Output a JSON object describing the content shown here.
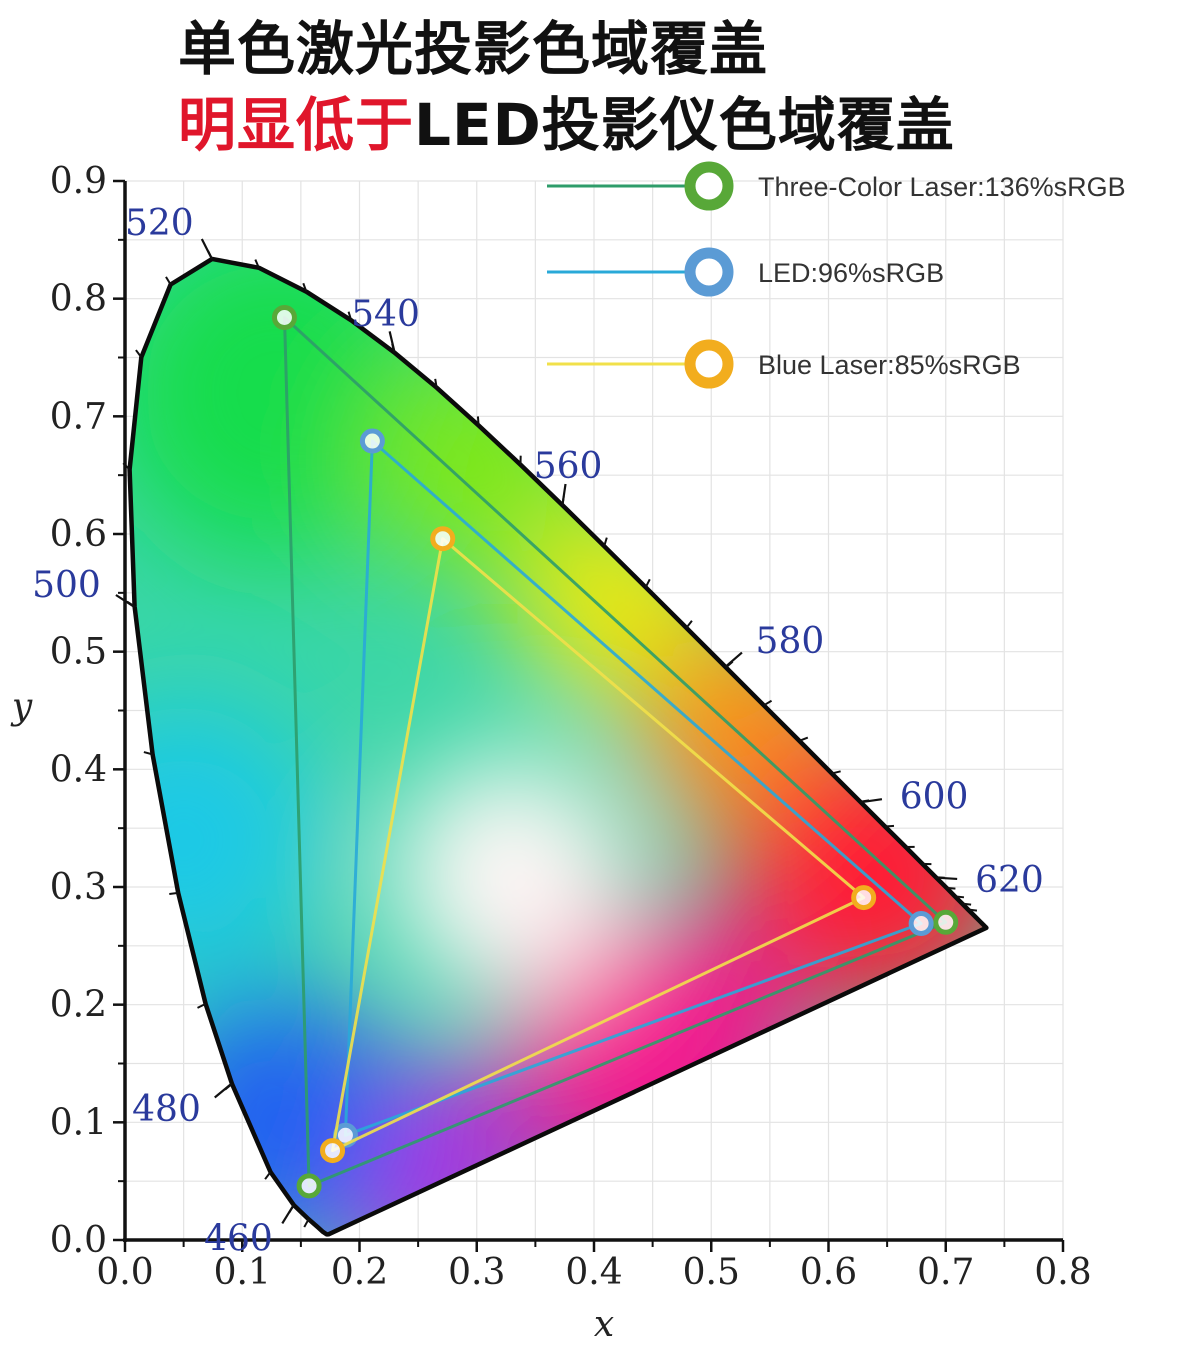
{
  "title": {
    "line1": "单色激光投影色域覆盖",
    "line2_red": "明显低于",
    "line2_rest": "LED投影仪色域覆盖"
  },
  "chart_data": {
    "type": "scatter",
    "subtype": "CIE 1931 chromaticity diagram with gamut triangles",
    "xlabel": "x",
    "ylabel": "y",
    "xlim": [
      0.0,
      0.8
    ],
    "ylim": [
      0.0,
      0.9
    ],
    "x_ticks": [
      "0.0",
      "0.1",
      "0.2",
      "0.3",
      "0.4",
      "0.5",
      "0.6",
      "0.7",
      "0.8"
    ],
    "y_ticks": [
      "0.0",
      "0.1",
      "0.2",
      "0.3",
      "0.4",
      "0.5",
      "0.6",
      "0.7",
      "0.8",
      "0.9"
    ],
    "grid": true,
    "legend_position": "top-right",
    "wavelength_labels": [
      {
        "text": "460",
        "x": 0.144,
        "y": 0.03
      },
      {
        "text": "480",
        "x": 0.091,
        "y": 0.133
      },
      {
        "text": "500",
        "x": 0.008,
        "y": 0.538
      },
      {
        "text": "520",
        "x": 0.074,
        "y": 0.834
      },
      {
        "text": "540",
        "x": 0.23,
        "y": 0.754
      },
      {
        "text": "560",
        "x": 0.373,
        "y": 0.624
      },
      {
        "text": "580",
        "x": 0.512,
        "y": 0.487
      },
      {
        "text": "600",
        "x": 0.627,
        "y": 0.372
      },
      {
        "text": "620",
        "x": 0.691,
        "y": 0.308
      }
    ],
    "spectral_locus": [
      [
        0.1741,
        0.005
      ],
      [
        0.1738,
        0.0049
      ],
      [
        0.1736,
        0.0049
      ],
      [
        0.1729,
        0.0048
      ],
      [
        0.172,
        0.0048
      ],
      [
        0.1689,
        0.0069
      ],
      [
        0.1644,
        0.0109
      ],
      [
        0.1566,
        0.0177
      ],
      [
        0.144,
        0.0297
      ],
      [
        0.1241,
        0.0578
      ],
      [
        0.0913,
        0.1327
      ],
      [
        0.0687,
        0.2007
      ],
      [
        0.0454,
        0.295
      ],
      [
        0.0235,
        0.4127
      ],
      [
        0.0082,
        0.5384
      ],
      [
        0.0039,
        0.6548
      ],
      [
        0.0139,
        0.7502
      ],
      [
        0.0389,
        0.812
      ],
      [
        0.0743,
        0.8338
      ],
      [
        0.1142,
        0.8262
      ],
      [
        0.1547,
        0.8059
      ],
      [
        0.1929,
        0.7816
      ],
      [
        0.2296,
        0.7543
      ],
      [
        0.2658,
        0.7243
      ],
      [
        0.3016,
        0.6923
      ],
      [
        0.3373,
        0.6589
      ],
      [
        0.3731,
        0.6245
      ],
      [
        0.4087,
        0.5896
      ],
      [
        0.4441,
        0.5547
      ],
      [
        0.4788,
        0.5202
      ],
      [
        0.5125,
        0.4866
      ],
      [
        0.5448,
        0.4544
      ],
      [
        0.5752,
        0.4242
      ],
      [
        0.6029,
        0.3965
      ],
      [
        0.627,
        0.3725
      ],
      [
        0.6482,
        0.3514
      ],
      [
        0.6658,
        0.334
      ],
      [
        0.6801,
        0.3197
      ],
      [
        0.6915,
        0.3083
      ],
      [
        0.7006,
        0.2993
      ],
      [
        0.7079,
        0.292
      ],
      [
        0.714,
        0.2859
      ],
      [
        0.719,
        0.2809
      ],
      [
        0.723,
        0.277
      ],
      [
        0.726,
        0.274
      ],
      [
        0.7283,
        0.2717
      ],
      [
        0.73,
        0.27
      ],
      [
        0.7311,
        0.2689
      ],
      [
        0.732,
        0.268
      ],
      [
        0.7327,
        0.2673
      ],
      [
        0.7334,
        0.2666
      ],
      [
        0.734,
        0.266
      ],
      [
        0.7344,
        0.2656
      ],
      [
        0.7346,
        0.2654
      ],
      [
        0.7347,
        0.2653
      ]
    ],
    "series": [
      {
        "name": "Three-Color Laser:136%sRGB",
        "color": "#2e9c6a",
        "marker_color": "#58a838",
        "points": [
          [
            0.136,
            0.784
          ],
          [
            0.7,
            0.27
          ],
          [
            0.157,
            0.046
          ]
        ]
      },
      {
        "name": "LED:96%sRGB",
        "color": "#29a9d8",
        "marker_color": "#5b9bd5",
        "points": [
          [
            0.211,
            0.679
          ],
          [
            0.679,
            0.269
          ],
          [
            0.188,
            0.089
          ]
        ]
      },
      {
        "name": "Blue Laser:85%sRGB",
        "color": "#f1e04a",
        "marker_color": "#f2ad1e",
        "points": [
          [
            0.271,
            0.596
          ],
          [
            0.63,
            0.291
          ],
          [
            0.177,
            0.076
          ]
        ]
      }
    ]
  }
}
